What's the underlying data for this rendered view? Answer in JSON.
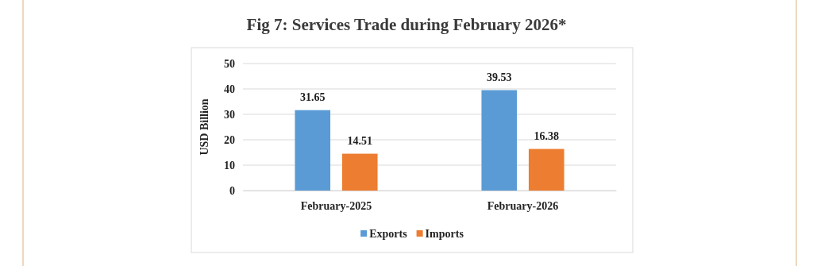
{
  "chart_data": {
    "type": "bar",
    "title": "Fig 7: Services Trade during February 2026*",
    "ylabel": "USD Billion",
    "categories": [
      "February-2025",
      "February-2026"
    ],
    "series": [
      {
        "name": "Exports",
        "color": "#5b9bd5",
        "values": [
          31.65,
          39.53
        ]
      },
      {
        "name": "Imports",
        "color": "#ed7d31",
        "values": [
          14.51,
          16.38
        ]
      }
    ],
    "ylim": [
      0,
      50
    ],
    "yticks": [
      0,
      10,
      20,
      30,
      40,
      50
    ],
    "grid": "y",
    "legend": "bottom",
    "data_labels": true
  }
}
